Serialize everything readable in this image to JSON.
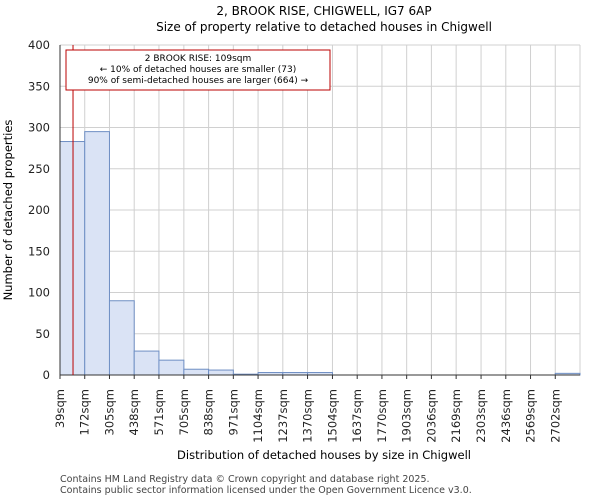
{
  "chart_data": {
    "type": "bar",
    "title_line1": "2, BROOK RISE, CHIGWELL, IG7 6AP",
    "title_line2": "Size of property relative to detached houses in Chigwell",
    "xlabel": "Distribution of detached houses by size in Chigwell",
    "ylabel": "Number of detached properties",
    "ylim": [
      0,
      400
    ],
    "yticks": [
      0,
      50,
      100,
      150,
      200,
      250,
      300,
      350,
      400
    ],
    "categories": [
      "39sqm",
      "172sqm",
      "305sqm",
      "438sqm",
      "571sqm",
      "705sqm",
      "838sqm",
      "971sqm",
      "1104sqm",
      "1237sqm",
      "1370sqm",
      "1504sqm",
      "1637sqm",
      "1770sqm",
      "1903sqm",
      "2036sqm",
      "2169sqm",
      "2303sqm",
      "2436sqm",
      "2569sqm",
      "2702sqm"
    ],
    "bin_edges": [
      39,
      172,
      305,
      438,
      571,
      705,
      838,
      971,
      1104,
      1237,
      1370,
      1504,
      1637,
      1770,
      1903,
      2036,
      2169,
      2303,
      2436,
      2569,
      2702,
      2835
    ],
    "values": [
      283,
      295,
      90,
      29,
      18,
      7,
      6,
      1,
      3,
      3,
      3,
      0,
      0,
      0,
      0,
      0,
      0,
      0,
      0,
      0,
      2
    ],
    "bar_color": "#dae3f5",
    "bar_edge_color": "#6f8fc4",
    "marker": {
      "value": 109,
      "color": "#bb0000",
      "label_line1": "2 BROOK RISE: 109sqm",
      "label_line2": "← 10% of detached houses are smaller (73)",
      "label_line3": "90% of semi-detached houses are larger (664) →"
    },
    "grid": true
  },
  "footer": {
    "line1": "Contains HM Land Registry data © Crown copyright and database right 2025.",
    "line2": "Contains public sector information licensed under the Open Government Licence v3.0."
  }
}
